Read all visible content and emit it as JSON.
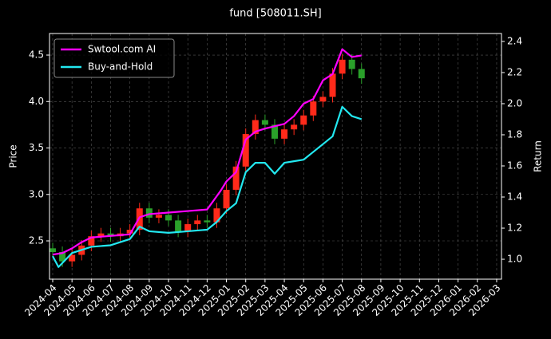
{
  "chart_data": {
    "type": "candlestick-dual",
    "title": "fund [508011.SH]",
    "ylabel": "Price",
    "y2label": "Return",
    "grid": true,
    "legend": "upper left",
    "xlim": [
      -0.165,
      23.25
    ],
    "xticks": [
      {
        "value": 0,
        "label": "2024-04"
      },
      {
        "value": 1,
        "label": "2024-05"
      },
      {
        "value": 2,
        "label": "2024-06"
      },
      {
        "value": 3,
        "label": "2024-07"
      },
      {
        "value": 4,
        "label": "2024-08"
      },
      {
        "value": 5,
        "label": "2024-09"
      },
      {
        "value": 6,
        "label": "2024-10"
      },
      {
        "value": 7,
        "label": "2024-11"
      },
      {
        "value": 8,
        "label": "2024-12"
      },
      {
        "value": 9,
        "label": "2025-01"
      },
      {
        "value": 10,
        "label": "2025-02"
      },
      {
        "value": 11,
        "label": "2025-03"
      },
      {
        "value": 12,
        "label": "2025-04"
      },
      {
        "value": 13,
        "label": "2025-05"
      },
      {
        "value": 14,
        "label": "2025-06"
      },
      {
        "value": 15,
        "label": "2025-07"
      },
      {
        "value": 16,
        "label": "2025-08"
      },
      {
        "value": 17,
        "label": "2025-09"
      },
      {
        "value": 18,
        "label": "2025-10"
      },
      {
        "value": 19,
        "label": "2025-11"
      },
      {
        "value": 20,
        "label": "2025-12"
      },
      {
        "value": 21,
        "label": "2026-01"
      },
      {
        "value": 22,
        "label": "2026-02"
      },
      {
        "value": 23,
        "label": "2026-03"
      }
    ],
    "ylim": [
      2.088,
      4.732
    ],
    "yticks": [
      2.5,
      {
        "value": 3,
        "label": "3.0"
      },
      3.5,
      {
        "value": 4,
        "label": "4.0"
      },
      4.5
    ],
    "y2lim": [
      0.872,
      2.451
    ],
    "y2ticks": [
      {
        "value": 1,
        "label": "1.0"
      },
      1.2,
      1.4,
      1.6,
      1.8,
      {
        "value": 2,
        "label": "2.0"
      },
      2.2,
      2.4
    ],
    "candles": {
      "up_color": "#ff2a1a",
      "down_color": "#2aa02a",
      "x": [
        0,
        0.5,
        1,
        1.5,
        2,
        2.5,
        3,
        3.5,
        4,
        4.5,
        5,
        5.5,
        6,
        6.5,
        7,
        7.5,
        8,
        8.5,
        9,
        9.5,
        10,
        10.5,
        11,
        11.5,
        12,
        12.5,
        13,
        13.5,
        14,
        14.5,
        15,
        15.5,
        16
      ],
      "open": [
        2.42,
        2.38,
        2.28,
        2.35,
        2.45,
        2.55,
        2.58,
        2.55,
        2.58,
        2.62,
        2.85,
        2.75,
        2.78,
        2.72,
        2.6,
        2.68,
        2.72,
        2.7,
        2.85,
        3.05,
        3.3,
        3.65,
        3.8,
        3.75,
        3.6,
        3.7,
        3.75,
        3.85,
        4.0,
        4.05,
        4.3,
        4.45,
        4.35
      ],
      "close": [
        2.38,
        2.28,
        2.35,
        2.45,
        2.55,
        2.58,
        2.55,
        2.58,
        2.62,
        2.85,
        2.75,
        2.78,
        2.72,
        2.6,
        2.68,
        2.72,
        2.7,
        2.85,
        3.05,
        3.3,
        3.65,
        3.8,
        3.75,
        3.6,
        3.7,
        3.75,
        3.85,
        4.0,
        4.05,
        4.3,
        4.45,
        4.35,
        4.25
      ],
      "high": [
        2.48,
        2.44,
        2.41,
        2.51,
        2.61,
        2.64,
        2.64,
        2.64,
        2.68,
        2.91,
        2.91,
        2.84,
        2.84,
        2.78,
        2.74,
        2.78,
        2.78,
        2.91,
        3.11,
        3.36,
        3.71,
        3.86,
        3.86,
        3.81,
        3.76,
        3.81,
        3.91,
        4.06,
        4.11,
        4.36,
        4.51,
        4.51,
        4.41
      ],
      "low": [
        2.32,
        2.22,
        2.22,
        2.29,
        2.39,
        2.49,
        2.49,
        2.49,
        2.52,
        2.56,
        2.69,
        2.69,
        2.66,
        2.54,
        2.54,
        2.62,
        2.64,
        2.64,
        2.79,
        2.99,
        3.24,
        3.59,
        3.69,
        3.54,
        3.54,
        3.64,
        3.69,
        3.79,
        3.94,
        3.99,
        4.24,
        4.29,
        4.19
      ]
    },
    "series": [
      {
        "name": "Swtool.com AI",
        "color": "#ff00ff",
        "axis": "y2",
        "x": [
          0,
          0.5,
          1,
          1.5,
          2,
          3,
          4,
          4.5,
          5,
          6,
          7,
          8,
          8.7,
          9,
          9.5,
          10,
          10.5,
          11,
          12,
          12.5,
          13,
          13.5,
          14,
          14.5,
          15,
          15.5,
          16
        ],
        "values": [
          1.03,
          1.04,
          1.07,
          1.11,
          1.14,
          1.15,
          1.16,
          1.27,
          1.29,
          1.3,
          1.31,
          1.32,
          1.44,
          1.5,
          1.56,
          1.77,
          1.82,
          1.84,
          1.87,
          1.92,
          2.0,
          2.03,
          2.15,
          2.19,
          2.35,
          2.3,
          2.31
        ]
      },
      {
        "name": "Buy-and-Hold",
        "color": "#22e8f0",
        "axis": "y2",
        "x": [
          0,
          0.3,
          1,
          2,
          3,
          4,
          4.5,
          5,
          6,
          7,
          8,
          8.5,
          9,
          9.5,
          10,
          10.5,
          11,
          11.5,
          12,
          12.5,
          13,
          13.5,
          14,
          14.5,
          15,
          15.5,
          16
        ],
        "values": [
          1.02,
          0.95,
          1.04,
          1.08,
          1.09,
          1.13,
          1.21,
          1.18,
          1.17,
          1.18,
          1.19,
          1.24,
          1.31,
          1.36,
          1.56,
          1.62,
          1.62,
          1.55,
          1.62,
          1.63,
          1.64,
          1.69,
          1.74,
          1.79,
          1.98,
          1.92,
          1.9
        ]
      }
    ]
  }
}
